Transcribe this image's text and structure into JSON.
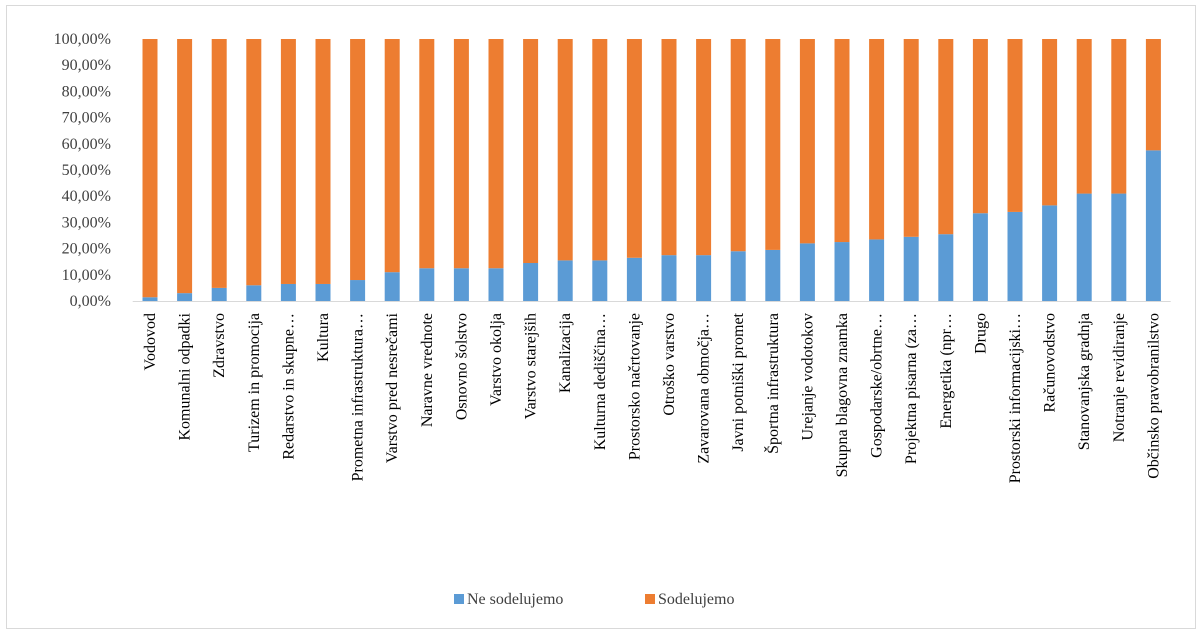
{
  "chart_data": {
    "type": "bar",
    "stacked": true,
    "percent_stacked": true,
    "categories": [
      "Vodovod",
      "Komunalni odpadki",
      "Zdravstvo",
      "Turizem in promocija",
      "Redarstvo in skupne…",
      "Kultura",
      "Prometna infrastruktura…",
      "Varstvo pred nesrečami",
      "Naravne vrednote",
      "Osnovno šolstvo",
      "Varstvo okolja",
      "Varstvo starejših",
      "Kanalizacija",
      "Kulturna dediščina…",
      "Prostorsko načrtovanje",
      "Otroško varstvo",
      "Zavarovana območja…",
      "Javni potniški promet",
      "Športna infrastruktura",
      "Urejanje vodotokov",
      "Skupna blagovna znamka",
      "Gospodarske/obrtne…",
      "Projektna pisarna (za…",
      "Energetika (npr…",
      "Drugo",
      "Prostorski informacijski…",
      "Računovodstvo",
      "Stanovanjska gradnja",
      "Notranje revidiranje",
      "Občinsko pravobranilstvo"
    ],
    "series": [
      {
        "name": "Ne sodelujemo",
        "color": "#5b9bd5",
        "values": [
          0.0143,
          0.03,
          0.05,
          0.06,
          0.065,
          0.065,
          0.08,
          0.11,
          0.125,
          0.125,
          0.125,
          0.145,
          0.155,
          0.155,
          0.165,
          0.175,
          0.175,
          0.19,
          0.195,
          0.22,
          0.225,
          0.235,
          0.245,
          0.255,
          0.335,
          0.34,
          0.365,
          0.41,
          0.41,
          0.575
        ]
      },
      {
        "name": "Sodelujemo",
        "color": "#ed7d31",
        "values": [
          0.9857,
          0.97,
          0.95,
          0.94,
          0.935,
          0.935,
          0.92,
          0.89,
          0.875,
          0.875,
          0.875,
          0.855,
          0.845,
          0.845,
          0.835,
          0.825,
          0.825,
          0.81,
          0.805,
          0.78,
          0.775,
          0.765,
          0.755,
          0.745,
          0.665,
          0.66,
          0.635,
          0.59,
          0.59,
          0.425
        ]
      }
    ],
    "ylim": [
      0,
      1
    ],
    "yticks": [
      "0,00%",
      "10,00%",
      "20,00%",
      "30,00%",
      "40,00%",
      "50,00%",
      "60,00%",
      "70,00%",
      "80,00%",
      "90,00%",
      "100,00%"
    ],
    "grid": false,
    "legend_position": "bottom"
  }
}
